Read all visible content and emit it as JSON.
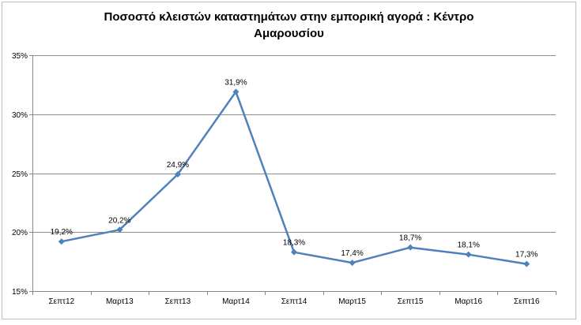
{
  "chart_data": {
    "type": "line",
    "title_line1": "Ποσοστό  κλειστών  καταστημάτων  στην εμπορική αγορά : Κέντρο",
    "title_line2": "Αμαρουσίου",
    "categories": [
      "Σεπτ12",
      "Μαρτ13",
      "Σεπτ13",
      "Μαρτ14",
      "Σεπτ14",
      "Μαρτ15",
      "Σεπτ15",
      "Μαρτ16",
      "Σεπτ16"
    ],
    "series": [
      {
        "values": [
          19.2,
          20.2,
          24.9,
          31.9,
          18.3,
          17.4,
          18.7,
          18.1,
          17.3
        ],
        "labels": [
          "19,2%",
          "20,2%",
          "24,9%",
          "31,9%",
          "18,3%",
          "17,4%",
          "18,7%",
          "18,1%",
          "17,3%"
        ],
        "color": "#4f81bd"
      }
    ],
    "ylim": [
      15,
      35
    ],
    "yticks": [
      15,
      20,
      25,
      30,
      35
    ],
    "ytick_labels": [
      "15%",
      "20%",
      "25%",
      "30%",
      "35%"
    ],
    "grid": true,
    "legend": "none"
  }
}
